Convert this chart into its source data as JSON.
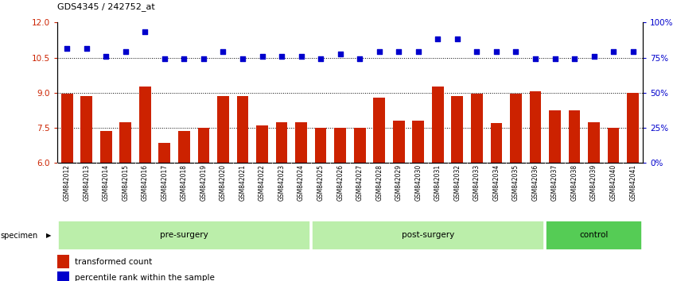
{
  "title": "GDS4345 / 242752_at",
  "categories": [
    "GSM842012",
    "GSM842013",
    "GSM842014",
    "GSM842015",
    "GSM842016",
    "GSM842017",
    "GSM842018",
    "GSM842019",
    "GSM842020",
    "GSM842021",
    "GSM842022",
    "GSM842023",
    "GSM842024",
    "GSM842025",
    "GSM842026",
    "GSM842027",
    "GSM842028",
    "GSM842029",
    "GSM842030",
    "GSM842031",
    "GSM842032",
    "GSM842033",
    "GSM842034",
    "GSM842035",
    "GSM842036",
    "GSM842037",
    "GSM842038",
    "GSM842039",
    "GSM842040",
    "GSM842041"
  ],
  "bar_values": [
    8.95,
    8.85,
    7.35,
    7.75,
    9.25,
    6.85,
    7.35,
    7.5,
    8.85,
    8.85,
    7.6,
    7.75,
    7.75,
    7.5,
    7.5,
    7.5,
    8.8,
    7.8,
    7.8,
    9.25,
    8.85,
    8.95,
    7.7,
    8.95,
    9.05,
    8.25,
    8.25,
    7.75,
    7.5,
    9.0
  ],
  "dot_values_left_axis": [
    10.9,
    10.9,
    10.55,
    10.75,
    11.6,
    10.45,
    10.45,
    10.45,
    10.75,
    10.45,
    10.55,
    10.55,
    10.55,
    10.45,
    10.65,
    10.45,
    10.75,
    10.75,
    10.75,
    11.3,
    11.3,
    10.75,
    10.75,
    10.75,
    10.45,
    10.45,
    10.45,
    10.55,
    10.75,
    10.75
  ],
  "groups": [
    {
      "label": "pre-surgery",
      "start": 0,
      "end": 13,
      "color": "#BBEEAA"
    },
    {
      "label": "post-surgery",
      "start": 13,
      "end": 25,
      "color": "#BBEEAA"
    },
    {
      "label": "control",
      "start": 25,
      "end": 30,
      "color": "#55CC55"
    }
  ],
  "bar_color": "#CC2200",
  "dot_color": "#0000CC",
  "ylim_left": [
    6,
    12
  ],
  "ylim_right": [
    0,
    100
  ],
  "yticks_left": [
    6,
    7.5,
    9,
    10.5,
    12
  ],
  "yticks_right": [
    0,
    25,
    50,
    75,
    100
  ],
  "hlines": [
    7.5,
    9.0,
    10.5
  ],
  "bar_bottom": 6,
  "xtick_bg": "#CCCCCC",
  "legend_items": [
    {
      "color": "#CC2200",
      "label": "transformed count"
    },
    {
      "color": "#0000CC",
      "label": "percentile rank within the sample"
    }
  ]
}
